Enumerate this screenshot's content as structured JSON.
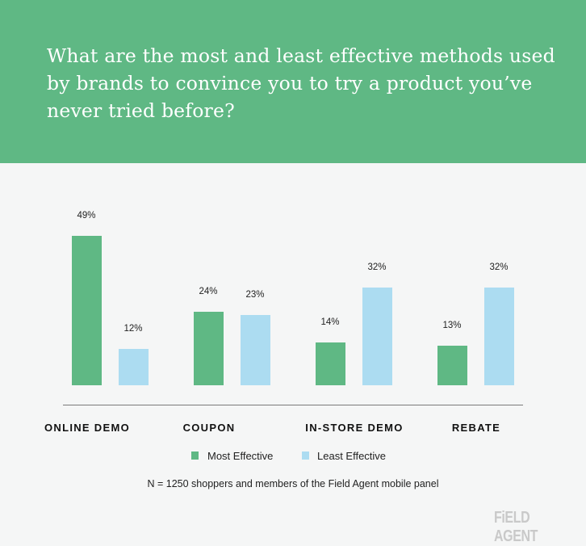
{
  "header": {
    "title": "What are the most and least effective methods used by brands to convince you to try a product you’ve never tried before?"
  },
  "chart_data": {
    "type": "bar",
    "title": "What are the most and least effective methods used by brands to convince you to try a product you’ve never tried before?",
    "categories": [
      "ONLINE DEMO",
      "COUPON",
      "IN-STORE DEMO",
      "REBATE"
    ],
    "series": [
      {
        "name": "Most Effective",
        "color": "#5fb884",
        "values": [
          49,
          24,
          14,
          13
        ],
        "labels": [
          "49%",
          "24%",
          "14%",
          "13%"
        ]
      },
      {
        "name": "Least Effective",
        "color": "#acdcf1",
        "values": [
          12,
          23,
          32,
          32
        ],
        "labels": [
          "12%",
          "23%",
          "32%",
          "32%"
        ]
      }
    ],
    "xlabel": "",
    "ylabel": "",
    "ylim": [
      0,
      50
    ],
    "grid": false,
    "legend_position": "bottom",
    "annotations": [
      "N = 1250 shoppers and members of the Field Agent mobile panel"
    ]
  },
  "legend": {
    "most": "Most Effective",
    "least": "Least Effective"
  },
  "footer": {
    "note": "N = 1250 shoppers and members of the Field Agent mobile panel",
    "logo": "FiELD AGENT"
  },
  "colors": {
    "header_bg": "#5fb884",
    "most": "#5fb884",
    "least": "#acdcf1",
    "background": "#f5f6f6"
  }
}
